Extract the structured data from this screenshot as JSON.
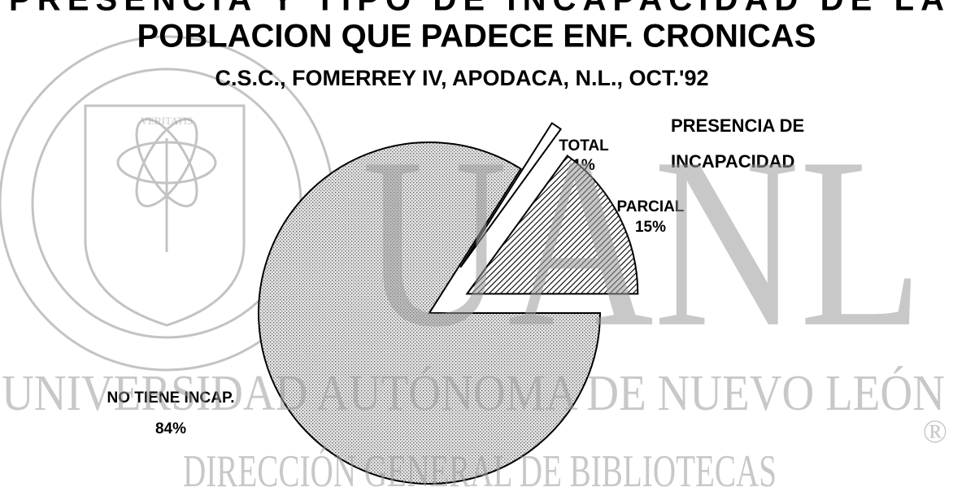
{
  "chart_data": {
    "type": "pie",
    "title": "PRESENCIA Y TIPO DE INCAPACIDAD DE LA",
    "title_line2": "POBLACION QUE PADECE ENF. CRONICAS",
    "subtitle": "C.S.C., FOMERREY IV, APODACA, N.L., OCT.'92",
    "legend_title": [
      "PRESENCIA DE",
      "INCAPACIDAD"
    ],
    "categories": [
      "NO TIENE INCAP.",
      "TOTAL",
      "PARCIAL"
    ],
    "values": [
      84,
      1,
      15
    ],
    "value_labels": [
      "84%",
      "1%",
      "15%"
    ]
  },
  "watermark": {
    "seal_motto": "VERITATIS",
    "initials": "UANL",
    "university": "UNIVERSIDAD AUTÓNOMA DE NUEVO LEÓN",
    "library": "DIRECCIÓN GENERAL DE BIBLIOTECAS",
    "mark": "®"
  }
}
